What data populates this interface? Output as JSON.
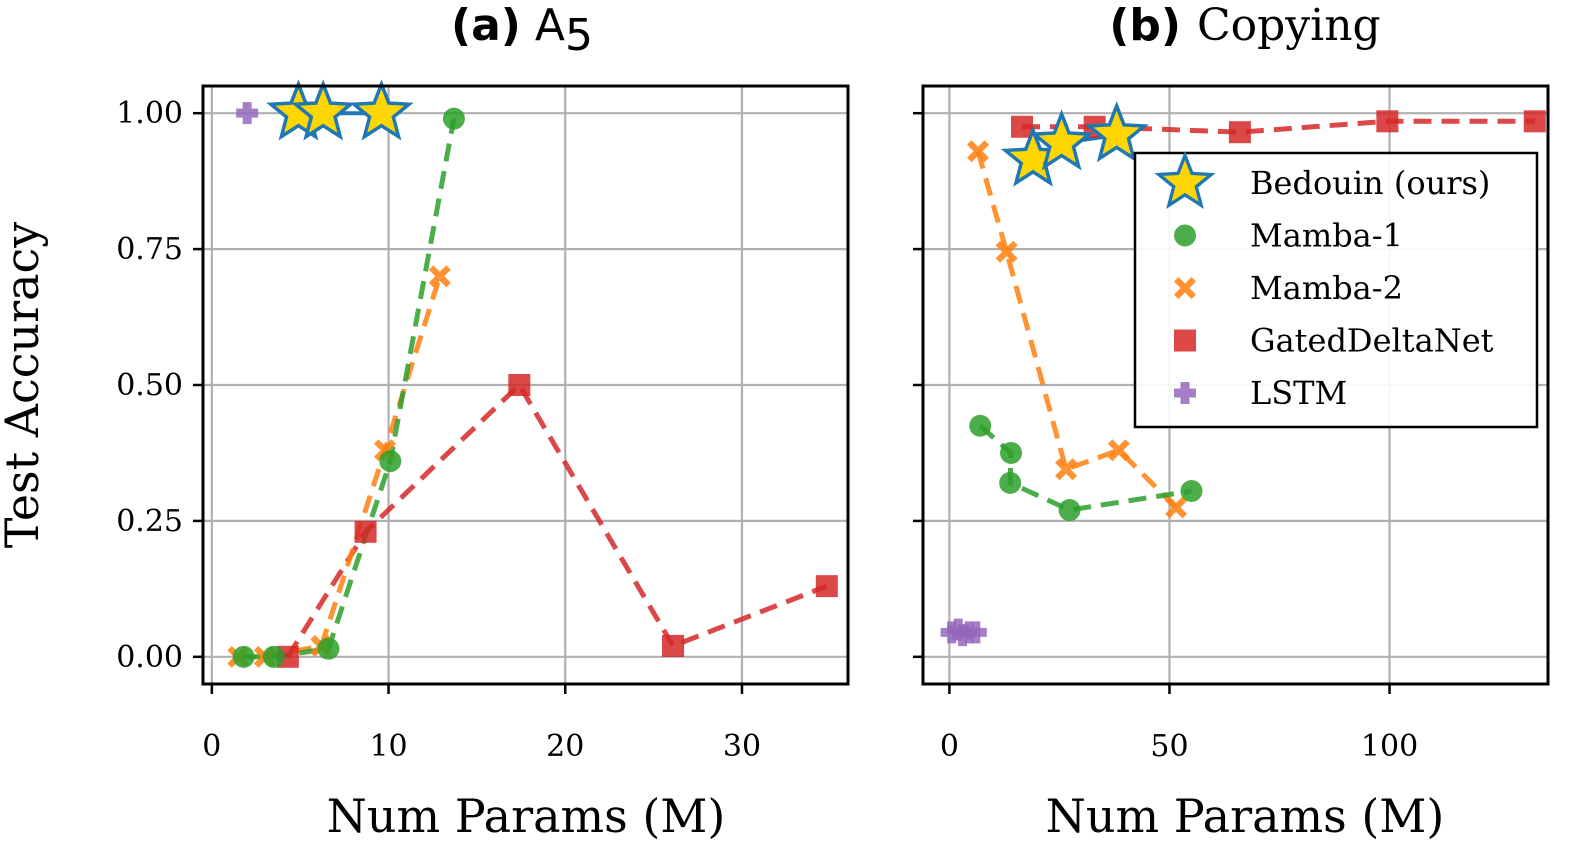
{
  "chart_data": [
    {
      "type": "line",
      "title_bold": "(a)",
      "title_main": "A",
      "title_sub": "5",
      "xlabel": "Num Params (M)",
      "ylabel": "Test Accuracy",
      "xlim": [
        -0.5,
        36
      ],
      "ylim": [
        -0.05,
        1.05
      ],
      "xticks": [
        0,
        10,
        20,
        30
      ],
      "xtick_labels": [
        "0",
        "10",
        "20",
        "30"
      ],
      "yticks": [
        0,
        0.25,
        0.5,
        0.75,
        1.0
      ],
      "ytick_labels": [
        "0.00",
        "0.25",
        "0.50",
        "0.75",
        "1.00"
      ],
      "grid": true,
      "series": [
        {
          "name": "GatedDeltaNet",
          "key": "gdn",
          "x": [
            4.3,
            8.7,
            17.4,
            26.1,
            34.8
          ],
          "y": [
            0.0,
            0.23,
            0.5,
            0.02,
            0.13
          ]
        },
        {
          "name": "Mamba-2",
          "key": "m2",
          "x": [
            1.5,
            3.0,
            6.2,
            9.8,
            12.9
          ],
          "y": [
            0.0,
            0.0,
            0.02,
            0.38,
            0.7
          ]
        },
        {
          "name": "Mamba-1",
          "key": "m1",
          "x": [
            1.8,
            3.5,
            6.6,
            10.1,
            13.7
          ],
          "y": [
            0.0,
            0.0,
            0.015,
            0.36,
            0.99
          ]
        },
        {
          "name": "LSTM",
          "key": "lstm",
          "x": [
            2.0
          ],
          "y": [
            1.0
          ]
        },
        {
          "name": "Bedouin (ours)",
          "key": "bed",
          "x": [
            4.9,
            6.3,
            9.6
          ],
          "y": [
            1.0,
            1.0,
            1.0
          ]
        }
      ]
    },
    {
      "type": "line",
      "title_bold": "(b)",
      "title_main": "Copying",
      "xlabel": "Num Params (M)",
      "ylabel": "",
      "xlim": [
        -6,
        136
      ],
      "ylim": [
        -0.05,
        1.05
      ],
      "xticks": [
        0,
        50,
        100
      ],
      "xtick_labels": [
        "0",
        "50",
        "100"
      ],
      "yticks": [
        0,
        0.25,
        0.5,
        0.75,
        1.0
      ],
      "grid": true,
      "series": [
        {
          "name": "GatedDeltaNet",
          "key": "gdn",
          "x": [
            16.5,
            33.0,
            66.0,
            99.5,
            133.0
          ],
          "y": [
            0.975,
            0.975,
            0.965,
            0.985,
            0.985
          ]
        },
        {
          "name": "Mamba-2",
          "key": "m2",
          "x": [
            6.5,
            13.0,
            26.5,
            38.5,
            51.5
          ],
          "y": [
            0.93,
            0.745,
            0.345,
            0.38,
            0.275
          ]
        },
        {
          "name": "Mamba-1",
          "key": "m1",
          "x": [
            7.0,
            14.0,
            13.8,
            27.3,
            55.0
          ],
          "y": [
            0.425,
            0.375,
            0.32,
            0.27,
            0.305
          ]
        },
        {
          "name": "LSTM",
          "key": "lstm",
          "x": [
            0.5,
            2.0,
            3.0,
            4.5,
            6.0
          ],
          "y": [
            0.045,
            0.05,
            0.04,
            0.045,
            0.045
          ]
        },
        {
          "name": "Bedouin (ours)",
          "key": "bed",
          "x": [
            19.0,
            25.5,
            38.0
          ],
          "y": [
            0.915,
            0.945,
            0.96
          ]
        }
      ]
    }
  ],
  "legend": {
    "placement": "upper-right of panel (b)",
    "entries": [
      {
        "key": "bed",
        "label": "Bedouin (ours)"
      },
      {
        "key": "m1",
        "label": "Mamba-1"
      },
      {
        "key": "m2",
        "label": "Mamba-2"
      },
      {
        "key": "gdn",
        "label": "GatedDeltaNet"
      },
      {
        "key": "lstm",
        "label": "LSTM"
      }
    ]
  },
  "colors": {
    "bed_fill": "#ffd700",
    "bed_edge": "#1f77b4",
    "m1": "#2ca02c",
    "m2": "#ff7f0e",
    "gdn": "#d62728",
    "lstm": "#9467bd"
  }
}
